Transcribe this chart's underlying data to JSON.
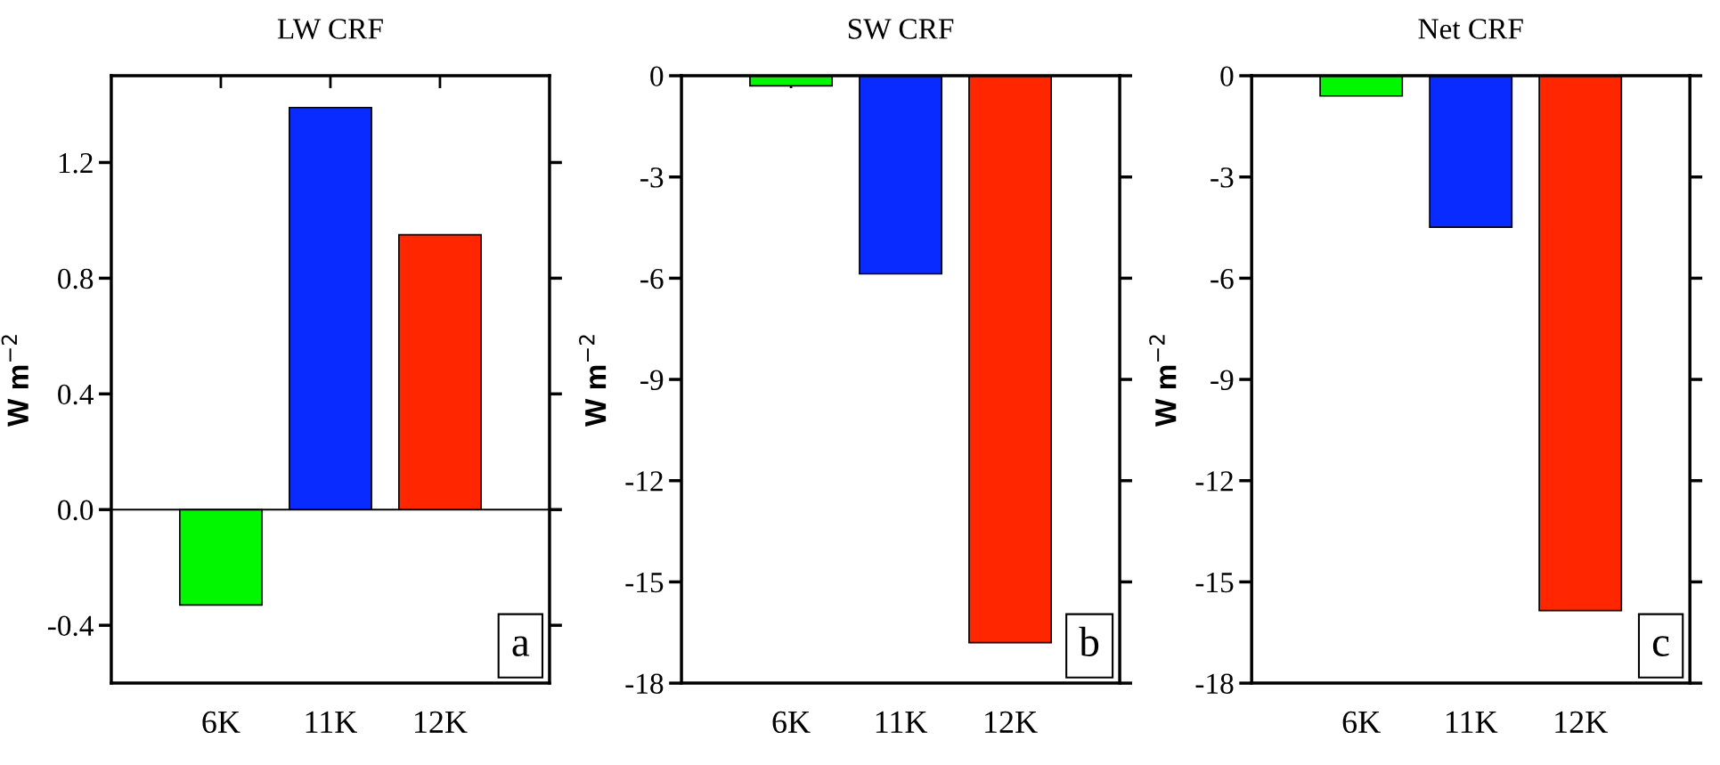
{
  "chart_data": [
    {
      "type": "bar",
      "title": "LW CRF",
      "ylabel": "W m$^{−2}$",
      "categories": [
        "6K",
        "11K",
        "12K"
      ],
      "values": [
        -0.33,
        1.39,
        0.95
      ],
      "colors": [
        "#00f700",
        "#0a2bff",
        "#ff2600"
      ],
      "ylim": [
        -0.6,
        1.5
      ],
      "yticks": [
        {
          "value": -0.4,
          "label": "-0.4"
        },
        {
          "value": 0,
          "label": "0.0"
        },
        {
          "value": 0.4,
          "label": "0.4"
        },
        {
          "value": 0.8,
          "label": "0.8"
        },
        {
          "value": 1.2,
          "label": "1.2"
        }
      ],
      "ref_lines": [
        {
          "axis": "y",
          "value": 0
        }
      ],
      "annotations": [
        "a"
      ]
    },
    {
      "type": "bar",
      "title": "SW CRF",
      "ylabel": "W m$^{−2}$",
      "categories": [
        "6K",
        "11K",
        "12K"
      ],
      "values": [
        -0.3,
        -5.87,
        -16.8
      ],
      "colors": [
        "#00f700",
        "#0a2bff",
        "#ff2600"
      ],
      "ylim": [
        -18,
        0
      ],
      "yticks": [
        {
          "value": -18,
          "label": "-18"
        },
        {
          "value": -15,
          "label": "-15"
        },
        {
          "value": -12,
          "label": "-12"
        },
        {
          "value": -9,
          "label": "-9"
        },
        {
          "value": -6,
          "label": "-6"
        },
        {
          "value": -3,
          "label": "-3"
        },
        0
      ],
      "annotations": [
        "b"
      ]
    },
    {
      "type": "bar",
      "title": "Net CRF",
      "ylabel": "W m$^{−2}$",
      "categories": [
        "6K",
        "11K",
        "12K"
      ],
      "values": [
        -0.6,
        -4.49,
        -15.85
      ],
      "colors": [
        "#00f700",
        "#0a2bff",
        "#ff2600"
      ],
      "ylim": [
        -18,
        0
      ],
      "yticks": [
        {
          "value": -18,
          "label": "-18"
        },
        {
          "value": -15,
          "label": "-15"
        },
        {
          "value": -12,
          "label": "-12"
        },
        {
          "value": -9,
          "label": "-9"
        },
        {
          "value": -6,
          "label": "-6"
        },
        {
          "value": -3,
          "label": "-3"
        },
        0
      ],
      "annotations": [
        "c"
      ]
    }
  ]
}
